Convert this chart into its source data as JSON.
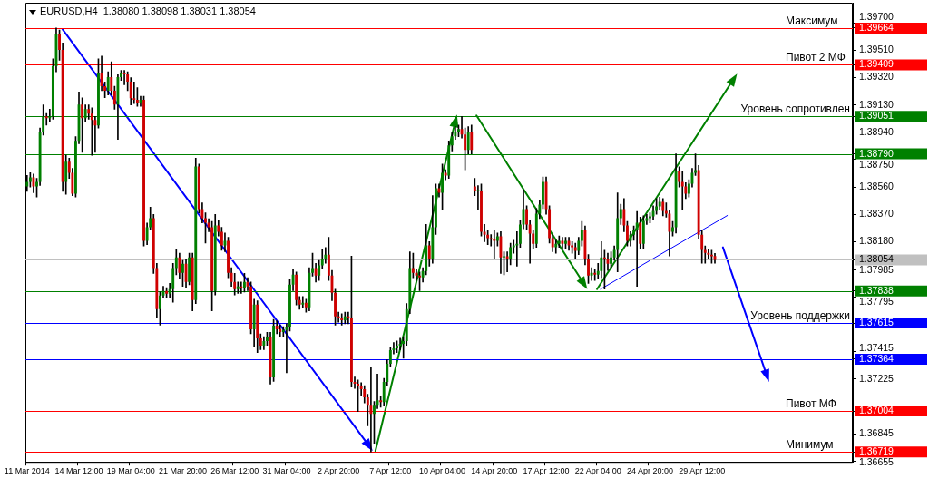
{
  "chart_data": {
    "type": "candlestick",
    "title": "EURUSD,H4  1.38080 1.38098 1.38031 1.38054",
    "categories": [
      "11 Mar 2014",
      null,
      null,
      null,
      null,
      null,
      null,
      null,
      null,
      null,
      null,
      null,
      null,
      null,
      null,
      null,
      "14 Mar 12:00",
      null,
      null,
      null,
      null,
      null,
      null,
      null,
      null,
      null,
      null,
      null,
      null,
      null,
      null,
      null,
      "19 Mar 04:00",
      null,
      null,
      null,
      null,
      null,
      null,
      null,
      null,
      null,
      null,
      null,
      null,
      null,
      null,
      null,
      "21 Mar 20:00",
      null,
      null,
      null,
      null,
      null,
      null,
      null,
      null,
      null,
      null,
      null,
      null,
      null,
      null,
      null,
      "26 Mar 12:00",
      null,
      null,
      null,
      null,
      null,
      null,
      null,
      null,
      null,
      null,
      null,
      null,
      null,
      null,
      null,
      "31 Mar 04:00",
      null,
      null,
      null,
      null,
      null,
      null,
      null,
      null,
      null,
      null,
      null,
      null,
      null,
      null,
      null,
      "2 Apr 20:00",
      null,
      null,
      null,
      null,
      null,
      null,
      null,
      null,
      null,
      null,
      null,
      null,
      null,
      null,
      null,
      "7 Apr 12:00",
      null,
      null,
      null,
      null,
      null,
      null,
      null,
      null,
      null,
      null,
      null,
      null,
      null,
      null,
      null,
      "10 Apr 04:00",
      null,
      null,
      null,
      null,
      null,
      null,
      null,
      null,
      null,
      null,
      null,
      null,
      null,
      null,
      null,
      "14 Apr 20:00",
      null,
      null,
      null,
      null,
      null,
      null,
      null,
      null,
      null,
      null,
      null,
      null,
      null,
      null,
      null,
      "17 Apr 12:00",
      null,
      null,
      null,
      null,
      null,
      null,
      null,
      null,
      null,
      null,
      null,
      null,
      null,
      null,
      null,
      "22 Apr 04:00",
      null,
      null,
      null,
      null,
      null,
      null,
      null,
      null,
      null,
      null,
      null,
      null,
      null,
      null,
      null,
      "24 Apr 20:00",
      null,
      null,
      null,
      null,
      null,
      null,
      null,
      null,
      null,
      null,
      null,
      null,
      null,
      null,
      null,
      "29 Apr 12:00",
      null,
      null,
      null,
      null,
      null,
      null,
      null,
      null,
      null,
      null,
      null,
      null,
      null,
      null,
      null,
      null,
      null,
      null,
      null,
      null,
      null,
      null,
      null,
      null,
      null,
      null,
      null,
      null,
      null,
      null,
      null,
      null,
      null,
      null,
      null,
      null,
      null,
      null,
      null,
      null,
      null,
      null,
      null,
      null,
      null,
      null
    ],
    "ohlc": [
      [
        1.38564,
        1.3864,
        1.3853,
        1.38596
      ],
      [
        1.38596,
        1.3866,
        1.3856,
        1.38627
      ],
      [
        1.38627,
        1.3865,
        1.3852,
        1.38564
      ],
      [
        1.38564,
        1.3862,
        1.3849,
        1.38596
      ],
      [
        1.38596,
        1.3897,
        1.3857,
        1.38943
      ],
      [
        1.38943,
        1.3913,
        1.3892,
        1.39051
      ],
      [
        1.39051,
        1.3907,
        1.3899,
        1.39038
      ],
      [
        1.39038,
        1.391,
        1.3901,
        1.39051
      ],
      [
        1.39051,
        1.3945,
        1.3903,
        1.39399
      ],
      [
        1.39399,
        1.39664,
        1.3936,
        1.39626
      ],
      [
        1.39626,
        1.3965,
        1.3944,
        1.39512
      ],
      [
        1.39512,
        1.3956,
        1.3853,
        1.38596
      ],
      [
        1.38596,
        1.3878,
        1.3851,
        1.38735
      ],
      [
        1.38735,
        1.3876,
        1.3862,
        1.38659
      ],
      [
        1.38659,
        1.3869,
        1.385,
        1.38514
      ],
      [
        1.38514,
        1.3891,
        1.3849,
        1.3888
      ],
      [
        1.3888,
        1.3922,
        1.3886,
        1.39133
      ],
      [
        1.39133,
        1.3918,
        1.388,
        1.39038
      ],
      [
        1.39038,
        1.3913,
        1.3901,
        1.39101
      ],
      [
        1.39101,
        1.3913,
        1.3903,
        1.3907
      ],
      [
        1.3907,
        1.3911,
        1.3878,
        1.39026
      ],
      [
        1.39026,
        1.3905,
        1.388,
        1.38988
      ],
      [
        1.38988,
        1.3945,
        1.3897,
        1.39354
      ],
      [
        1.39354,
        1.3947,
        1.3923,
        1.3926
      ],
      [
        1.3926,
        1.3929,
        1.3918,
        1.39228
      ],
      [
        1.39228,
        1.3936,
        1.392,
        1.39323
      ],
      [
        1.39323,
        1.3943,
        1.392,
        1.39228
      ],
      [
        1.39228,
        1.3926,
        1.391,
        1.39133
      ],
      [
        1.39133,
        1.3934,
        1.3889,
        1.39323
      ],
      [
        1.39323,
        1.3937,
        1.393,
        1.39354
      ],
      [
        1.39354,
        1.3937,
        1.3927,
        1.39342
      ],
      [
        1.39342,
        1.3936,
        1.3923,
        1.39291
      ],
      [
        1.39291,
        1.3932,
        1.3913,
        1.39177
      ],
      [
        1.39177,
        1.3929,
        1.3914,
        1.39165
      ],
      [
        1.39165,
        1.3925,
        1.3912,
        1.39146
      ],
      [
        1.39146,
        1.3919,
        1.3912,
        1.39165
      ],
      [
        1.39165,
        1.3919,
        1.3815,
        1.38185
      ],
      [
        1.38185,
        1.3831,
        1.3816,
        1.3828
      ],
      [
        1.3828,
        1.3842,
        1.3826,
        1.38343
      ],
      [
        1.38343,
        1.3837,
        1.3796,
        1.37996
      ],
      [
        1.37996,
        1.3803,
        1.3765,
        1.37711
      ],
      [
        1.37711,
        1.3783,
        1.376,
        1.37806
      ],
      [
        1.37806,
        1.3787,
        1.3779,
        1.37838
      ],
      [
        1.37838,
        1.3786,
        1.3779,
        1.37819
      ],
      [
        1.37819,
        1.3789,
        1.3779,
        1.3785
      ],
      [
        1.3785,
        1.3803,
        1.3776,
        1.37996
      ],
      [
        1.37996,
        1.3813,
        1.3795,
        1.38071
      ],
      [
        1.38071,
        1.381,
        1.3792,
        1.37964
      ],
      [
        1.37964,
        1.3805,
        1.3787,
        1.38027
      ],
      [
        1.38027,
        1.3806,
        1.3786,
        1.37901
      ],
      [
        1.37901,
        1.381,
        1.3788,
        1.38071
      ],
      [
        1.38071,
        1.381,
        1.377,
        1.37774
      ],
      [
        1.37774,
        1.3876,
        1.3775,
        1.38703
      ],
      [
        1.38703,
        1.3872,
        1.3838,
        1.38406
      ],
      [
        1.38406,
        1.3845,
        1.3831,
        1.38343
      ],
      [
        1.38343,
        1.3838,
        1.3817,
        1.38312
      ],
      [
        1.38312,
        1.3834,
        1.3825,
        1.3828
      ],
      [
        1.3828,
        1.3832,
        1.377,
        1.37838
      ],
      [
        1.37838,
        1.3837,
        1.3781,
        1.38293
      ],
      [
        1.38293,
        1.3833,
        1.3822,
        1.38248
      ],
      [
        1.38248,
        1.3828,
        1.3812,
        1.38154
      ],
      [
        1.38154,
        1.3824,
        1.3811,
        1.38185
      ],
      [
        1.38185,
        1.3821,
        1.3793,
        1.37964
      ],
      [
        1.37964,
        1.38,
        1.3787,
        1.37901
      ],
      [
        1.37901,
        1.3796,
        1.3781,
        1.3785
      ],
      [
        1.3785,
        1.379,
        1.3782,
        1.37869
      ],
      [
        1.37869,
        1.379,
        1.3782,
        1.37856
      ],
      [
        1.37856,
        1.3796,
        1.3783,
        1.37901
      ],
      [
        1.37901,
        1.3793,
        1.3784,
        1.37869
      ],
      [
        1.37869,
        1.379,
        1.3754,
        1.37572
      ],
      [
        1.37572,
        1.3778,
        1.3745,
        1.37743
      ],
      [
        1.37743,
        1.3777,
        1.3741,
        1.37509
      ],
      [
        1.37509,
        1.3754,
        1.3743,
        1.37458
      ],
      [
        1.37458,
        1.3752,
        1.3743,
        1.3749
      ],
      [
        1.3749,
        1.3755,
        1.3746,
        1.37521
      ],
      [
        1.37521,
        1.3755,
        1.3719,
        1.37237
      ],
      [
        1.37237,
        1.3764,
        1.3721,
        1.37597
      ],
      [
        1.37597,
        1.3763,
        1.3754,
        1.37572
      ],
      [
        1.37572,
        1.376,
        1.3752,
        1.37553
      ],
      [
        1.37553,
        1.3759,
        1.3752,
        1.37566
      ],
      [
        1.37566,
        1.3761,
        1.3727,
        1.37585
      ],
      [
        1.37585,
        1.3792,
        1.3756,
        1.37882
      ],
      [
        1.37882,
        1.3799,
        1.3784,
        1.37951
      ],
      [
        1.37951,
        1.3797,
        1.3774,
        1.37774
      ],
      [
        1.37774,
        1.378,
        1.3771,
        1.37743
      ],
      [
        1.37743,
        1.378,
        1.3772,
        1.37755
      ],
      [
        1.37755,
        1.3778,
        1.3769,
        1.37724
      ],
      [
        1.37724,
        1.38,
        1.377,
        1.37964
      ],
      [
        1.37964,
        1.381,
        1.3794,
        1.37996
      ],
      [
        1.37996,
        1.3803,
        1.379,
        1.37945
      ],
      [
        1.37945,
        1.3805,
        1.3791,
        1.38015
      ],
      [
        1.38015,
        1.3813,
        1.3799,
        1.38059
      ],
      [
        1.38059,
        1.3814,
        1.3803,
        1.3809
      ],
      [
        1.3809,
        1.3821,
        1.3791,
        1.37945
      ],
      [
        1.37945,
        1.3798,
        1.3777,
        1.37825
      ],
      [
        1.37825,
        1.3785,
        1.376,
        1.37661
      ],
      [
        1.37661,
        1.3769,
        1.3762,
        1.37648
      ],
      [
        1.37648,
        1.3768,
        1.376,
        1.37635
      ],
      [
        1.37635,
        1.3769,
        1.3761,
        1.37661
      ],
      [
        1.37661,
        1.3769,
        1.3761,
        1.37648
      ],
      [
        1.37648,
        1.3808,
        1.3717,
        1.37206
      ],
      [
        1.37206,
        1.3724,
        1.3716,
        1.37193
      ],
      [
        1.37193,
        1.3722,
        1.37,
        1.37174
      ],
      [
        1.37174,
        1.372,
        1.3711,
        1.37155
      ],
      [
        1.37155,
        1.3718,
        1.3706,
        1.37098
      ],
      [
        1.37098,
        1.3712,
        1.369,
        1.37047
      ],
      [
        1.37047,
        1.3731,
        1.36719,
        1.36984
      ],
      [
        1.36984,
        1.3707,
        1.3678,
        1.37047
      ],
      [
        1.37047,
        1.3726,
        1.3702,
        1.37079
      ],
      [
        1.37079,
        1.3711,
        1.3703,
        1.37066
      ],
      [
        1.37066,
        1.3723,
        1.3704,
        1.37206
      ],
      [
        1.37206,
        1.3736,
        1.3718,
        1.37332
      ],
      [
        1.37332,
        1.3745,
        1.3731,
        1.37427
      ],
      [
        1.37427,
        1.3748,
        1.374,
        1.37439
      ],
      [
        1.37439,
        1.3749,
        1.3741,
        1.37458
      ],
      [
        1.37458,
        1.3751,
        1.3743,
        1.37471
      ],
      [
        1.37471,
        1.3752,
        1.3737,
        1.3749
      ],
      [
        1.3749,
        1.3775,
        1.3746,
        1.37711
      ],
      [
        1.37711,
        1.3811,
        1.3768,
        1.37996
      ],
      [
        1.37996,
        1.381,
        1.3793,
        1.37964
      ],
      [
        1.37964,
        1.3799,
        1.3791,
        1.37945
      ],
      [
        1.37945,
        1.3797,
        1.3784,
        1.37932
      ],
      [
        1.37932,
        1.38,
        1.379,
        1.37977
      ],
      [
        1.37977,
        1.383,
        1.3795,
        1.38154
      ],
      [
        1.38154,
        1.3818,
        1.3801,
        1.38059
      ],
      [
        1.38059,
        1.385,
        1.3803,
        1.3828
      ],
      [
        1.3828,
        1.3858,
        1.3823,
        1.38552
      ],
      [
        1.38552,
        1.3858,
        1.3849,
        1.3852
      ],
      [
        1.3852,
        1.3872,
        1.384,
        1.38659
      ],
      [
        1.38659,
        1.3868,
        1.3861,
        1.3864
      ],
      [
        1.3864,
        1.3888,
        1.3862,
        1.38849
      ],
      [
        1.38849,
        1.3894,
        1.3881,
        1.38912
      ],
      [
        1.38912,
        1.3898,
        1.3889,
        1.38943
      ],
      [
        1.38943,
        1.3899,
        1.3891,
        1.38962
      ],
      [
        1.38962,
        1.3905,
        1.389,
        1.38924
      ],
      [
        1.38924,
        1.3897,
        1.3868,
        1.38817
      ],
      [
        1.38817,
        1.3898,
        1.3879,
        1.38943
      ],
      [
        1.38943,
        1.3899,
        1.3879,
        1.38817
      ],
      [
        1.38564,
        1.3862,
        1.385,
        1.38533
      ],
      [
        1.38533,
        1.3857,
        1.384,
        1.38533
      ],
      [
        1.38533,
        1.3858,
        1.3822,
        1.38248
      ],
      [
        1.38248,
        1.383,
        1.3818,
        1.38229
      ],
      [
        1.38229,
        1.3826,
        1.3816,
        1.38204
      ],
      [
        1.38204,
        1.3823,
        1.3815,
        1.38198
      ],
      [
        1.38198,
        1.3826,
        1.3806,
        1.38185
      ],
      [
        1.38185,
        1.3824,
        1.3815,
        1.38217
      ],
      [
        1.38217,
        1.3825,
        1.3796,
        1.38071
      ],
      [
        1.38071,
        1.3811,
        1.3795,
        1.38078
      ],
      [
        1.38078,
        1.3811,
        1.3797,
        1.38059
      ],
      [
        1.38059,
        1.3817,
        1.3802,
        1.38141
      ],
      [
        1.38141,
        1.3819,
        1.381,
        1.38154
      ],
      [
        1.38154,
        1.3825,
        1.3801,
        1.38166
      ],
      [
        1.38166,
        1.3833,
        1.3814,
        1.38299
      ],
      [
        1.38299,
        1.3854,
        1.3827,
        1.38406
      ],
      [
        1.38406,
        1.3843,
        1.3826,
        1.38299
      ],
      [
        1.38299,
        1.3833,
        1.3803,
        1.38236
      ],
      [
        1.38236,
        1.3826,
        1.3813,
        1.38166
      ],
      [
        1.38166,
        1.3841,
        1.3814,
        1.38375
      ],
      [
        1.38375,
        1.3847,
        1.3834,
        1.38438
      ],
      [
        1.38438,
        1.3863,
        1.3841,
        1.38596
      ],
      [
        1.38596,
        1.3863,
        1.3837,
        1.38406
      ],
      [
        1.38406,
        1.3843,
        1.3817,
        1.38204
      ],
      [
        1.38204,
        1.3823,
        1.3811,
        1.38141
      ],
      [
        1.38141,
        1.3819,
        1.381,
        1.38166
      ],
      [
        1.38166,
        1.3822,
        1.3814,
        1.38185
      ],
      [
        1.38185,
        1.3821,
        1.3813,
        1.38166
      ],
      [
        1.38166,
        1.3821,
        1.3813,
        1.38185
      ],
      [
        1.38185,
        1.3821,
        1.3812,
        1.38154
      ],
      [
        1.38154,
        1.3818,
        1.381,
        1.38141
      ],
      [
        1.38141,
        1.3817,
        1.3806,
        1.38116
      ],
      [
        1.38116,
        1.3821,
        1.3809,
        1.38185
      ],
      [
        1.38185,
        1.3832,
        1.3815,
        1.38261
      ],
      [
        1.38261,
        1.3829,
        1.3802,
        1.38059
      ],
      [
        1.38059,
        1.3809,
        1.3789,
        1.37945
      ],
      [
        1.37945,
        1.38,
        1.3791,
        1.37964
      ],
      [
        1.37964,
        1.3799,
        1.3791,
        1.37951
      ],
      [
        1.37951,
        1.3803,
        1.3792,
        1.37977
      ],
      [
        1.37977,
        1.3818,
        1.3793,
        1.38071
      ],
      [
        1.38071,
        1.3812,
        1.3785,
        1.38059
      ],
      [
        1.38059,
        1.381,
        1.3798,
        1.38027
      ],
      [
        1.38027,
        1.3811,
        1.38,
        1.38071
      ],
      [
        1.38071,
        1.3815,
        1.3805,
        1.38122
      ],
      [
        1.38122,
        1.3852,
        1.3797,
        1.38343
      ],
      [
        1.38343,
        1.3844,
        1.383,
        1.38406
      ],
      [
        1.38406,
        1.3848,
        1.3825,
        1.38293
      ],
      [
        1.38293,
        1.3832,
        1.3815,
        1.38185
      ],
      [
        1.38185,
        1.3825,
        1.3815,
        1.38229
      ],
      [
        1.38229,
        1.3829,
        1.3819,
        1.38261
      ],
      [
        1.38261,
        1.3839,
        1.3787,
        1.38312
      ],
      [
        1.38312,
        1.3835,
        1.3813,
        1.38166
      ],
      [
        1.38166,
        1.3836,
        1.3813,
        1.38324
      ],
      [
        1.38324,
        1.3837,
        1.383,
        1.38343
      ],
      [
        1.38343,
        1.3838,
        1.3831,
        1.38356
      ],
      [
        1.38356,
        1.3843,
        1.3833,
        1.38394
      ],
      [
        1.38394,
        1.3848,
        1.3837,
        1.38425
      ],
      [
        1.38425,
        1.3849,
        1.384,
        1.38457
      ],
      [
        1.38457,
        1.3848,
        1.3836,
        1.38394
      ],
      [
        1.38394,
        1.3845,
        1.3835,
        1.38375
      ],
      [
        1.38375,
        1.384,
        1.3808,
        1.38248
      ],
      [
        1.38248,
        1.3832,
        1.3822,
        1.3828
      ],
      [
        1.3828,
        1.3879,
        1.3824,
        1.38672
      ],
      [
        1.38672,
        1.387,
        1.3856,
        1.38596
      ],
      [
        1.38596,
        1.3867,
        1.384,
        1.38564
      ],
      [
        1.38564,
        1.3859,
        1.3848,
        1.38514
      ],
      [
        1.38514,
        1.3861,
        1.3849,
        1.38583
      ],
      [
        1.38583,
        1.3869,
        1.3856,
        1.38659
      ],
      [
        1.38659,
        1.3879,
        1.3864,
        1.38678
      ],
      [
        1.38678,
        1.3871,
        1.382,
        1.38229
      ],
      [
        1.38229,
        1.3826,
        1.3803,
        1.38122
      ],
      [
        1.38122,
        1.3815,
        1.3803,
        1.38103
      ],
      [
        1.38103,
        1.3813,
        1.3806,
        1.3809
      ],
      [
        1.3809,
        1.3812,
        1.3803,
        1.38078
      ],
      [
        1.3808,
        1.38098,
        1.38031,
        1.38054
      ],
      null,
      null,
      null,
      null,
      null,
      null,
      null,
      null,
      null,
      null,
      null,
      null,
      null,
      null,
      null,
      null,
      null,
      null,
      null,
      null,
      null,
      null,
      null,
      null,
      null,
      null,
      null,
      null,
      null,
      null,
      null,
      null,
      null,
      null,
      null,
      null,
      null,
      null,
      null,
      null,
      null,
      null
    ],
    "colors": [
      "#008000",
      "#008000",
      "#d00000",
      "#008000",
      "#008000",
      "#008000",
      "#d00000",
      "#008000",
      "#008000",
      "#008000",
      "#d00000",
      "#d00000",
      "#008000",
      "#d00000",
      "#d00000",
      "#008000",
      "#008000",
      "#d00000",
      "#008000",
      "#d00000",
      "#d00000",
      "#d00000",
      "#008000",
      "#d00000",
      "#d00000",
      "#008000",
      "#d00000",
      "#d00000",
      "#008000",
      "#008000",
      "#d00000",
      "#d00000",
      "#d00000",
      "#d00000",
      "#d00000",
      "#008000",
      "#d00000",
      "#008000",
      "#008000",
      "#d00000",
      "#d00000",
      "#008000",
      "#008000",
      "#d00000",
      "#008000",
      "#008000",
      "#008000",
      "#d00000",
      "#008000",
      "#d00000",
      "#008000",
      "#d00000",
      "#008000",
      "#d00000",
      "#d00000",
      "#d00000",
      "#d00000",
      "#d00000",
      "#008000",
      "#d00000",
      "#d00000",
      "#008000",
      "#d00000",
      "#d00000",
      "#d00000",
      "#008000",
      "#d00000",
      "#008000",
      "#d00000",
      "#d00000",
      "#008000",
      "#d00000",
      "#d00000",
      "#008000",
      "#008000",
      "#d00000",
      "#008000",
      "#d00000",
      "#d00000",
      "#008000",
      "#008000",
      "#008000",
      "#008000",
      "#d00000",
      "#d00000",
      "#008000",
      "#d00000",
      "#008000",
      "#008000",
      "#d00000",
      "#008000",
      "#008000",
      "#008000",
      "#d00000",
      "#d00000",
      "#d00000",
      "#d00000",
      "#d00000",
      "#008000",
      "#d00000",
      "#d00000",
      "#d00000",
      "#d00000",
      "#d00000",
      "#d00000",
      "#d00000",
      "#d00000",
      "#008000",
      "#008000",
      "#d00000",
      "#008000",
      "#008000",
      "#008000",
      "#008000",
      "#008000",
      "#008000",
      "#008000",
      "#008000",
      "#008000",
      "#d00000",
      "#d00000",
      "#d00000",
      "#008000",
      "#008000",
      "#d00000",
      "#008000",
      "#008000",
      "#d00000",
      "#008000",
      "#d00000",
      "#008000",
      "#008000",
      "#008000",
      "#008000",
      "#d00000",
      "#d00000",
      "#008000",
      "#d00000",
      "#d00000",
      "#008000",
      "#d00000",
      "#d00000",
      "#d00000",
      "#d00000",
      "#d00000",
      "#008000",
      "#d00000",
      "#008000",
      "#d00000",
      "#008000",
      "#008000",
      "#008000",
      "#008000",
      "#008000",
      "#d00000",
      "#d00000",
      "#d00000",
      "#008000",
      "#008000",
      "#008000",
      "#d00000",
      "#d00000",
      "#d00000",
      "#008000",
      "#008000",
      "#d00000",
      "#008000",
      "#d00000",
      "#d00000",
      "#d00000",
      "#008000",
      "#008000",
      "#d00000",
      "#d00000",
      "#008000",
      "#d00000",
      "#008000",
      "#008000",
      "#d00000",
      "#d00000",
      "#008000",
      "#008000",
      "#008000",
      "#008000",
      "#d00000",
      "#d00000",
      "#008000",
      "#008000",
      "#008000",
      "#d00000",
      "#008000",
      "#008000",
      "#008000",
      "#008000",
      "#008000",
      "#008000",
      "#d00000",
      "#d00000",
      "#d00000",
      "#008000",
      "#008000",
      "#d00000",
      "#d00000",
      "#d00000",
      "#008000",
      "#008000",
      "#008000",
      "#d00000",
      "#d00000",
      "#d00000",
      "#d00000",
      "#d00000",
      "#d00000",
      null,
      null,
      null,
      null,
      null,
      null,
      null,
      null,
      null,
      null,
      null,
      null,
      null,
      null,
      null,
      null,
      null,
      null,
      null,
      null,
      null,
      null,
      null,
      null,
      null,
      null,
      null,
      null,
      null,
      null,
      null,
      null,
      null,
      null,
      null,
      null,
      null,
      null,
      null,
      null,
      null,
      null
    ],
    "ylim": [
      1.3665,
      1.3984
    ],
    "yticks": [
      {
        "value": 1.397,
        "label": "1.39700"
      },
      1.39664,
      {
        "value": 1.3951,
        "label": "1.39510"
      },
      1.39409,
      {
        "value": 1.3932,
        "label": "1.39320"
      },
      {
        "value": 1.3913,
        "label": "1.39130"
      },
      1.39051,
      {
        "value": 1.3894,
        "label": "1.38940"
      },
      {
        "value": 1.3879,
        "label": "1.38790"
      },
      {
        "value": 1.3875,
        "label": "1.38750"
      },
      {
        "value": 1.3856,
        "label": "1.38560"
      },
      {
        "value": 1.3837,
        "label": "1.38370"
      },
      {
        "value": 1.3818,
        "label": "1.38180"
      },
      1.38054,
      1.37985,
      1.37838,
      1.37795,
      1.37615,
      1.37415,
      1.37364,
      1.37225,
      1.37004,
      1.36845,
      1.36719,
      1.36655
    ],
    "ref_lines": [
      {
        "axis": "y",
        "value": 1.39664,
        "label": "Максимум",
        "color": "#ff0000"
      },
      {
        "axis": "y",
        "value": 1.39409,
        "label": "Пивот 2 МФ",
        "color": "#ff0000"
      },
      {
        "axis": "y",
        "value": 1.39051,
        "label": "Уровень сопротивлен",
        "color": "#008000"
      },
      {
        "axis": "y",
        "value": 1.3879,
        "color": "#008000"
      },
      {
        "axis": "y",
        "value": 1.38054,
        "color": "#c0c0c0"
      },
      {
        "axis": "y",
        "value": 1.37838,
        "color": "#008000"
      },
      {
        "axis": "y",
        "value": 1.37615,
        "label": "Уровень поддержки",
        "color": "#0000ff"
      },
      {
        "axis": "y",
        "value": 1.37364,
        "color": "#0000ff"
      },
      {
        "axis": "y",
        "value": 1.37004,
        "label": "Пивот МФ",
        "color": "#ff0000"
      },
      {
        "axis": "y",
        "value": 1.36719,
        "label": "Минимум",
        "color": "#ff0000"
      }
    ]
  }
}
